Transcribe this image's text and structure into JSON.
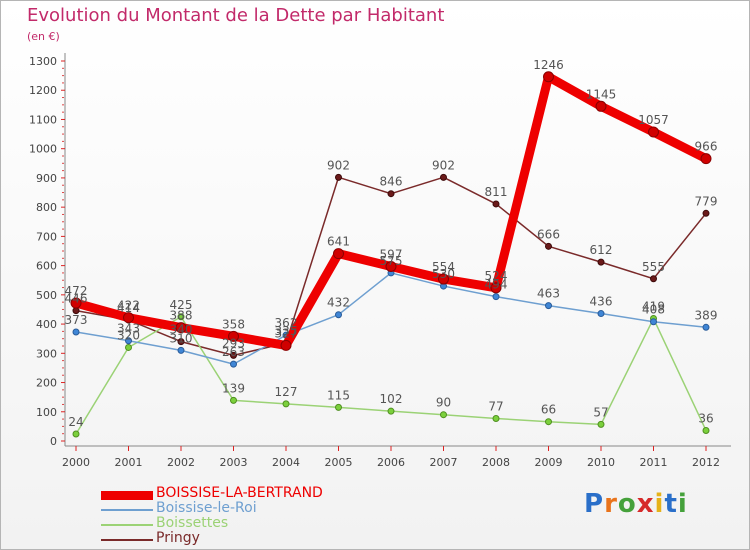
{
  "header": {
    "title": "Evolution du Montant de la Dette par Habitant",
    "subtitle": "(en €)"
  },
  "logo": {
    "text": "Proxiti"
  },
  "chart_data": {
    "type": "line",
    "title": "Evolution du Montant de la Dette par Habitant",
    "ylabel": "(en €)",
    "xlabel": "",
    "x": [
      "2000",
      "2001",
      "2002",
      "2003",
      "2004",
      "2005",
      "2006",
      "2007",
      "2008",
      "2009",
      "2010",
      "2011",
      "2012"
    ],
    "ylim": [
      0,
      1300
    ],
    "yticks": [
      0,
      100,
      200,
      300,
      400,
      500,
      600,
      700,
      800,
      900,
      1000,
      1100,
      1200,
      1300
    ],
    "grid": false,
    "legend_position": "bottom-left",
    "series": [
      {
        "name": "BOISSISE-LA-BERTRAND",
        "color": "#ee0000",
        "values": [
          472,
          422,
          388,
          358,
          327,
          641,
          597,
          554,
          524,
          1246,
          1145,
          1057,
          966
        ],
        "labels": [
          "472",
          "422",
          "388",
          "358",
          "327",
          "641",
          "597",
          "554",
          "524",
          "1246",
          "1145",
          "1057",
          "966"
        ]
      },
      {
        "name": "Boissise-le-Roi",
        "color": "#6e9fd0",
        "values": [
          373,
          343,
          310,
          263,
          362,
          432,
          575,
          530,
          494,
          463,
          436,
          408,
          389
        ],
        "labels": [
          "373",
          "343",
          "310",
          "263",
          "362",
          "432",
          "575",
          "530",
          "494",
          "463",
          "436",
          "408",
          "389"
        ]
      },
      {
        "name": "Boissettes",
        "color": "#9bd275",
        "values": [
          24,
          320,
          425,
          139,
          127,
          115,
          102,
          90,
          77,
          66,
          57,
          419,
          36
        ],
        "labels": [
          "24",
          "320",
          "425",
          "139",
          "127",
          "115",
          "102",
          "90",
          "77",
          "66",
          "57",
          "419",
          "36"
        ]
      },
      {
        "name": "Pringy",
        "color": "#7a2a2a",
        "values": [
          446,
          414,
          340,
          293,
          335,
          902,
          846,
          902,
          811,
          666,
          612,
          555,
          779
        ],
        "labels": [
          "446",
          "414",
          "340",
          "293",
          "335",
          "902",
          "846",
          "902",
          "811",
          "666",
          "612",
          "555",
          "779"
        ]
      }
    ]
  }
}
